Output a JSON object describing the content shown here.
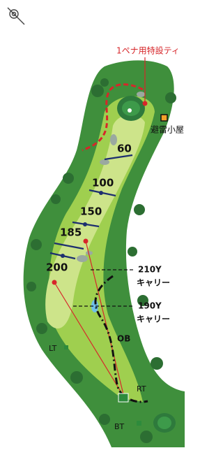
{
  "map": {
    "special_tee": "1ペナ用特設ティ",
    "shelter": "避雷小屋",
    "distance_markers": [
      "60",
      "100",
      "150",
      "185",
      "200"
    ],
    "carry_labels": [
      {
        "distance": "210Y",
        "label": "キャリー"
      },
      {
        "distance": "190Y",
        "label": "キャリー"
      }
    ],
    "ob": "OB",
    "tees": [
      "LT",
      "RT",
      "BT"
    ]
  }
}
